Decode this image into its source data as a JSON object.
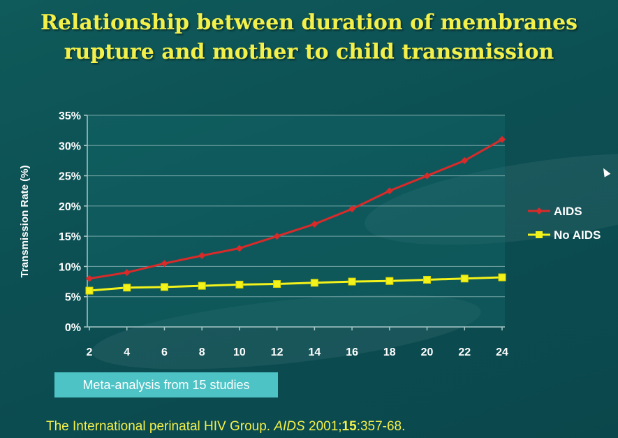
{
  "slide": {
    "title_line1": "Relationship between duration of membranes",
    "title_line2": "rupture and mother to child transmission",
    "note": "Meta-analysis from 15 studies",
    "citation": {
      "prefix": "The International perinatal HIV Group. ",
      "journal": "AIDS",
      "year": " 2001;",
      "volume": "15",
      "pages": ":357-68."
    }
  },
  "chart_data": {
    "type": "line",
    "ylabel": "Transmission Rate (%)",
    "x": [
      2,
      4,
      6,
      8,
      10,
      12,
      14,
      16,
      18,
      20,
      22,
      24
    ],
    "x_tick_labels": [
      "2",
      "4",
      "6",
      "8",
      "10",
      "12",
      "14",
      "16",
      "18",
      "20",
      "22",
      "24"
    ],
    "ylim": [
      0,
      35
    ],
    "y_tick_labels": [
      "0%",
      "5%",
      "10%",
      "15%",
      "20%",
      "25%",
      "30%",
      "35%"
    ],
    "grid": true,
    "legend_position": "right",
    "series": [
      {
        "name": "AIDS",
        "color": "#d92a2a",
        "marker": "diamond",
        "values": [
          8.0,
          9.0,
          10.5,
          11.8,
          13.0,
          15.0,
          17.0,
          19.5,
          22.5,
          25.0,
          27.5,
          31.0
        ]
      },
      {
        "name": "No AIDS",
        "color": "#f3f21a",
        "marker": "square",
        "values": [
          6.0,
          6.5,
          6.6,
          6.8,
          7.0,
          7.1,
          7.3,
          7.5,
          7.6,
          7.8,
          8.0,
          8.2
        ]
      }
    ]
  }
}
